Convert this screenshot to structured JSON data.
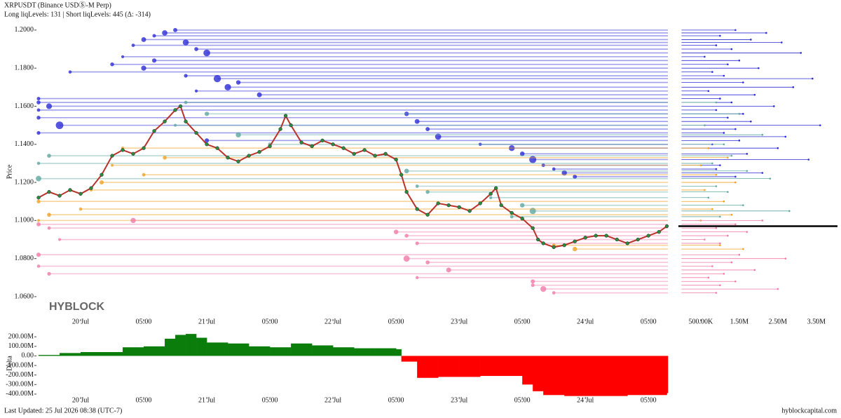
{
  "header": {
    "title": "XRPUSDT (Binance USDⓈ-M Perp)",
    "subtitle": "Long liqLevels: 131 | Short liqLevels: 445 (Δ: -314)"
  },
  "watermark": "HYBLOCK",
  "footer": {
    "updated": "Last Updated: 25 Jul 2026 08:38 (UTC-7)",
    "site": "hyblockcapital.com"
  },
  "chart_data": [
    {
      "type": "line",
      "y_label": "Price",
      "color": "#b8322a",
      "marker_color": "#2e8b3a",
      "x": [
        -8,
        -6,
        -4,
        -2,
        0,
        2,
        4,
        6,
        8,
        10,
        12,
        14,
        16,
        18,
        19,
        20,
        22,
        24,
        26,
        28,
        30,
        32,
        34,
        36,
        38,
        39,
        40,
        42,
        44,
        46,
        48,
        50,
        52,
        54,
        56,
        58,
        60,
        61,
        62,
        64,
        66,
        68,
        70,
        72,
        74,
        76,
        78,
        79,
        80,
        82,
        84,
        86,
        87,
        88,
        90,
        92,
        94,
        96,
        98,
        100,
        102,
        104,
        106,
        108,
        110,
        111.5
      ],
      "values": [
        1.112,
        1.115,
        1.113,
        1.116,
        1.114,
        1.117,
        1.124,
        1.134,
        1.137,
        1.135,
        1.138,
        1.147,
        1.152,
        1.158,
        1.16,
        1.152,
        1.146,
        1.14,
        1.138,
        1.133,
        1.131,
        1.134,
        1.136,
        1.139,
        1.148,
        1.155,
        1.15,
        1.141,
        1.139,
        1.142,
        1.14,
        1.138,
        1.135,
        1.137,
        1.134,
        1.135,
        1.132,
        1.124,
        1.115,
        1.106,
        1.103,
        1.109,
        1.108,
        1.107,
        1.105,
        1.109,
        1.114,
        1.117,
        1.108,
        1.104,
        1.101,
        1.096,
        1.09,
        1.088,
        1.086,
        1.087,
        1.089,
        1.091,
        1.092,
        1.092,
        1.09,
        1.088,
        1.09,
        1.092,
        1.094,
        1.097
      ],
      "xlim": [
        -8.4,
        111.7
      ],
      "ylim": [
        1.0482,
        1.2029
      ],
      "xticks": [
        {
          "value": 0,
          "label": "20 Jul"
        },
        {
          "value": 12,
          "label": "05:00"
        },
        {
          "value": 24,
          "label": "21 Jul"
        },
        {
          "value": 36,
          "label": "05:00"
        },
        {
          "value": 48,
          "label": "22 Jul"
        },
        {
          "value": 60,
          "label": "05:00"
        },
        {
          "value": 72,
          "label": "23 Jul"
        },
        {
          "value": 84,
          "label": "05:00"
        },
        {
          "value": 96,
          "label": "24 Jul"
        },
        {
          "value": 108,
          "label": "05:00"
        }
      ],
      "yticks": [
        {
          "value": 1.06,
          "label": "1.0600"
        },
        {
          "value": 1.08,
          "label": "1.0800"
        },
        {
          "value": 1.1,
          "label": "1.1000"
        },
        {
          "value": 1.12,
          "label": "1.1200"
        },
        {
          "value": 1.14,
          "label": "1.1400"
        },
        {
          "value": 1.16,
          "label": "1.1600"
        },
        {
          "value": 1.18,
          "label": "1.1800"
        },
        {
          "value": 1.2,
          "label": "1.2000"
        }
      ],
      "size_xlim": [
        -80000,
        4050000
      ],
      "size_xticks": [
        {
          "value": 500000,
          "label": "500.00K"
        },
        {
          "value": 1500000,
          "label": "1.50M"
        },
        {
          "value": 2500000,
          "label": "2.50M"
        },
        {
          "value": 3500000,
          "label": "3.50M"
        }
      ],
      "level_groups": [
        {
          "color": "#2b2bd6",
          "price": [
            1.2,
            1.1985,
            1.197,
            1.195,
            1.1935,
            1.192,
            1.19,
            1.188,
            1.186,
            1.184,
            1.182,
            1.18,
            1.178,
            1.176,
            1.1745,
            1.1725,
            1.17,
            1.168,
            1.166,
            1.164,
            1.162,
            1.16,
            1.158,
            1.156,
            1.154,
            1.152,
            1.15,
            1.148,
            1.146,
            1.144,
            1.142,
            1.14,
            1.138,
            1.135,
            1.132,
            1.129,
            1.127,
            1.125,
            1.123
          ],
          "x": [
            18,
            16,
            14,
            12,
            20,
            10,
            22,
            24,
            8,
            14,
            6,
            12,
            -2,
            20,
            26,
            30,
            28,
            22,
            34,
            -8,
            -8,
            -6,
            -8,
            62,
            -8,
            64,
            -4,
            66,
            -8,
            68,
            24,
            76,
            82,
            84,
            86,
            88,
            90,
            92,
            94
          ],
          "size": [
            1400000,
            2200000,
            1000000,
            1800000,
            2600000,
            900000,
            1300000,
            3100000,
            600000,
            1500000,
            1200000,
            2000000,
            800000,
            1100000,
            3400000,
            1600000,
            2900000,
            700000,
            1900000,
            1000000,
            1300000,
            2400000,
            900000,
            1600000,
            1200000,
            1800000,
            3600000,
            1400000,
            1100000,
            2700000,
            1500000,
            800000,
            2500000,
            1700000,
            3300000,
            1000000,
            900000,
            2100000,
            1400000
          ]
        },
        {
          "color": "#5fa8a0",
          "price": [
            1.162,
            1.156,
            1.15,
            1.145,
            1.14,
            1.134,
            1.13,
            1.126,
            1.122,
            1.118,
            1.115,
            1.112,
            1.108,
            1.105,
            1.102
          ],
          "x": [
            20,
            24,
            18,
            30,
            36,
            -6,
            -8,
            62,
            -8,
            64,
            66,
            78,
            84,
            86,
            82
          ],
          "size": [
            900000,
            1500000,
            600000,
            2100000,
            1100000,
            1300000,
            800000,
            1700000,
            2300000,
            900000,
            1200000,
            700000,
            1600000,
            2800000,
            1000000
          ]
        },
        {
          "color": "#f0a020",
          "price": [
            1.138,
            1.133,
            1.129,
            1.124,
            1.12,
            1.116,
            1.11,
            1.106,
            1.103,
            1.1,
            1.087,
            1.085
          ],
          "x": [
            8,
            16,
            6,
            12,
            4,
            2,
            -8,
            0,
            -6,
            -8,
            90,
            94
          ],
          "size": [
            700000,
            1200000,
            500000,
            900000,
            1400000,
            600000,
            1100000,
            800000,
            1300000,
            500000,
            1000000,
            1600000
          ]
        },
        {
          "color": "#f07aa8",
          "price": [
            1.1,
            1.098,
            1.096,
            1.094,
            1.092,
            1.09,
            1.088,
            1.082,
            1.08,
            1.078,
            1.076,
            1.074,
            1.072,
            1.07,
            1.068,
            1.066,
            1.064,
            1.062
          ],
          "x": [
            10,
            -8,
            -6,
            60,
            62,
            -4,
            64,
            -8,
            62,
            66,
            -8,
            70,
            -6,
            64,
            86,
            86,
            88,
            90
          ],
          "size": [
            2100000,
            1400000,
            900000,
            1700000,
            1200000,
            600000,
            1000000,
            1500000,
            2700000,
            1300000,
            800000,
            1900000,
            1100000,
            700000,
            1400000,
            1000000,
            2500000,
            900000
          ]
        }
      ]
    },
    {
      "type": "step-area",
      "y_label": "Delta",
      "positive_color": "#0a7d0a",
      "negative_color": "#ff0000",
      "x": [
        -8,
        -4,
        0,
        4,
        8,
        12,
        16,
        18,
        20,
        22,
        24,
        28,
        32,
        36,
        40,
        44,
        48,
        52,
        56,
        60,
        61,
        64,
        68,
        72,
        76,
        80,
        84,
        86,
        88,
        92,
        96,
        100,
        104,
        108,
        111.5
      ],
      "values": [
        10000000,
        30000000,
        40000000,
        40000000,
        90000000,
        100000000,
        180000000,
        220000000,
        230000000,
        190000000,
        140000000,
        130000000,
        100000000,
        90000000,
        130000000,
        110000000,
        90000000,
        80000000,
        80000000,
        70000000,
        -60000000,
        -230000000,
        -220000000,
        -220000000,
        -210000000,
        -210000000,
        -300000000,
        -370000000,
        -410000000,
        -420000000,
        -420000000,
        -420000000,
        -410000000,
        -410000000,
        -390000000
      ],
      "ylim": [
        -430000000,
        275000000
      ],
      "yticks": [
        {
          "value": 200000000,
          "label": "200.00M"
        },
        {
          "value": 100000000,
          "label": "100.00M"
        },
        {
          "value": 0,
          "label": "0.00"
        },
        {
          "value": -100000000,
          "label": "-100.00M"
        },
        {
          "value": -200000000,
          "label": "-200.00M"
        },
        {
          "value": -300000000,
          "label": "-300.00M"
        },
        {
          "value": -400000000,
          "label": "-400.00M"
        }
      ]
    }
  ]
}
